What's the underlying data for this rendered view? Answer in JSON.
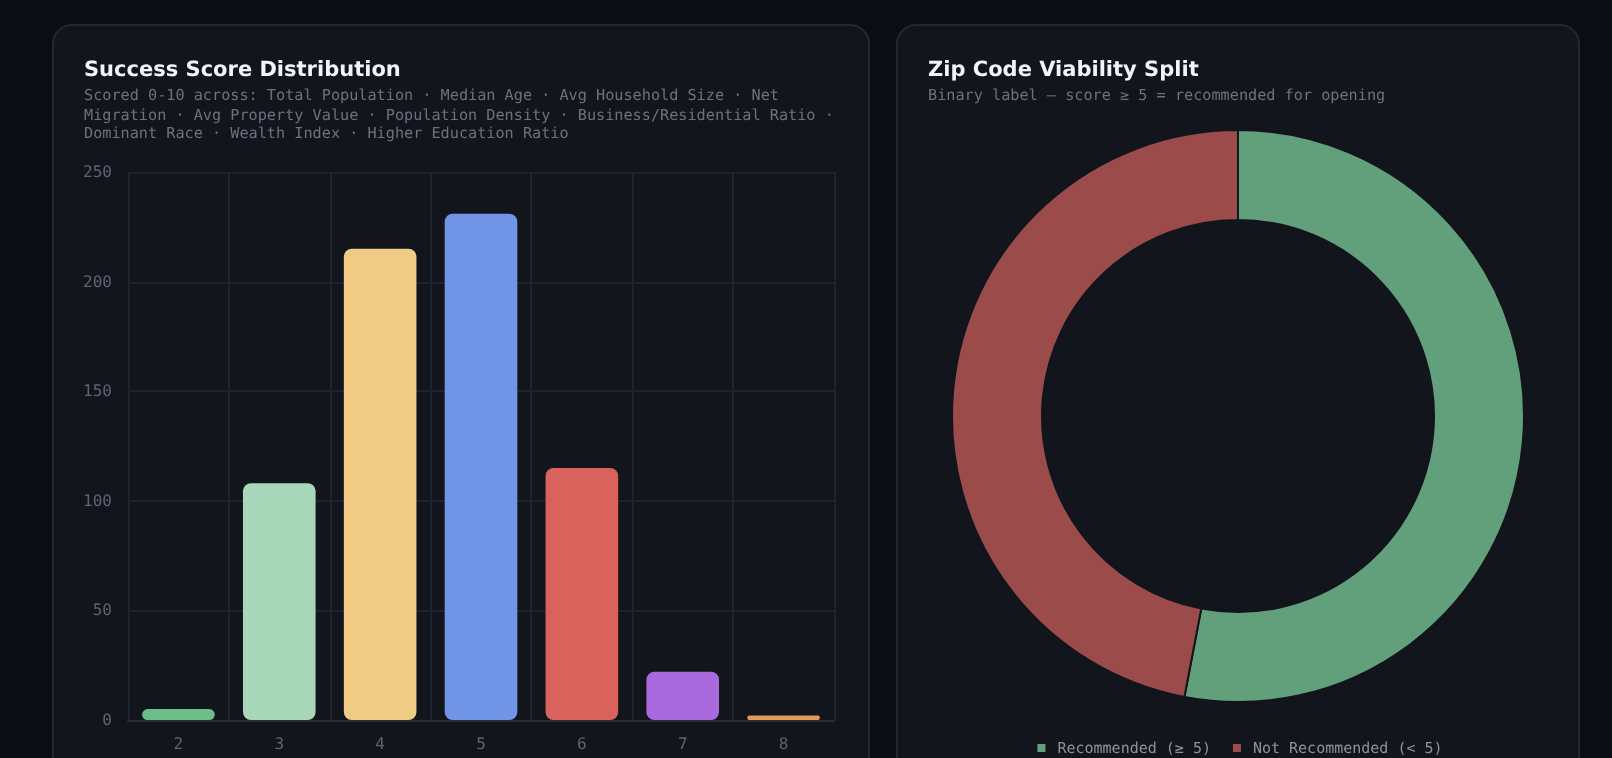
{
  "chart_data": [
    {
      "type": "bar",
      "title": "Success Score Distribution",
      "subtitle": "Scored 0-10 across: Total Population · Median Age · Avg Household Size · Net Migration · Avg Property Value · Population Density · Business/Residential Ratio · Dominant Race · Wealth Index · Higher Education Ratio",
      "categories": [
        "2",
        "3",
        "4",
        "5",
        "6",
        "7",
        "8"
      ],
      "values": [
        5,
        108,
        215,
        231,
        115,
        22,
        2
      ],
      "colors": [
        "#6bbf8a",
        "#a8d8b9",
        "#f0cb85",
        "#7095e6",
        "#d9625c",
        "#a96ade",
        "#e59a5c"
      ],
      "ylim": [
        0,
        250
      ],
      "yticks": [
        0,
        50,
        100,
        150,
        200,
        250
      ],
      "grid": true
    },
    {
      "type": "donut",
      "title": "Zip Code Viability Split",
      "subtitle": "Binary label — score ≥ 5 = recommended for opening",
      "categories": [
        "Recommended (≥ 5)",
        "Not Recommended (< 5)"
      ],
      "values": [
        53,
        47
      ],
      "colors": [
        "#62a07c",
        "#9c4b4b"
      ],
      "legend": "bottom"
    }
  ]
}
